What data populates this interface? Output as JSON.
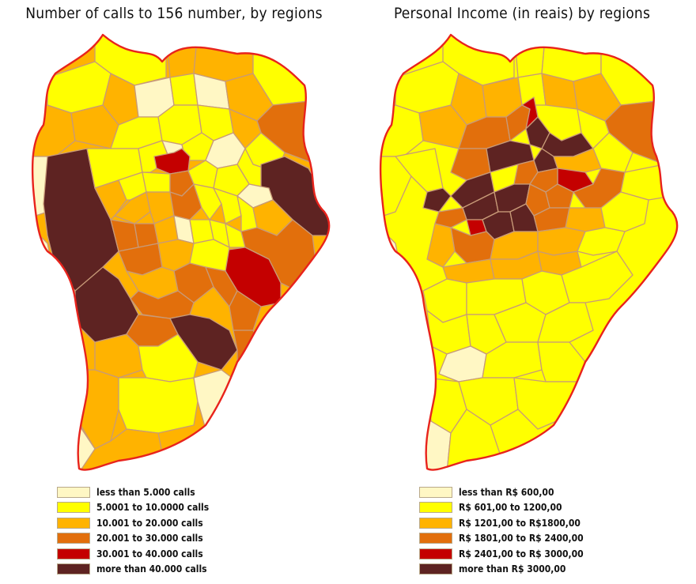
{
  "colors": {
    "c1": "#fff7c4",
    "c2": "#ffff00",
    "c3": "#ffb300",
    "c4": "#e26f0c",
    "c5": "#c40000",
    "c6": "#5e2322",
    "outline": "#e8231c",
    "inner": "#c89a78"
  },
  "maps": [
    {
      "title": "Number of calls to 156 number, by regions",
      "legend": [
        {
          "label": "less than 5.000 calls",
          "color": "#fff7c4"
        },
        {
          "label": "5.0001 to 10.0000  calls",
          "color": "#ffff00"
        },
        {
          "label": "10.001 to 20.000  calls",
          "color": "#ffb300"
        },
        {
          "label": "20.001 to 30.000  calls",
          "color": "#e26f0c"
        },
        {
          "label": "30.001 to 40.000  calls",
          "color": "#c40000"
        },
        {
          "label": "more than 40.000  calls",
          "color": "#5e2322"
        }
      ]
    },
    {
      "title": "Personal Income (in reais) by regions",
      "legend": [
        {
          "label": "less than R$ 600,00",
          "color": "#fff7c4"
        },
        {
          "label": "R$ 601,00 to 1200,00",
          "color": "#ffff00"
        },
        {
          "label": "R$ 1201,00 to R$1800,00",
          "color": "#ffb300"
        },
        {
          "label": "R$ 1801,00 to R$ 2400,00",
          "color": "#e26f0c"
        },
        {
          "label": "R$ 2401,00 to R$ 3000,00",
          "color": "#c40000"
        },
        {
          "label": "more than R$ 3000,00",
          "color": "#5e2322"
        }
      ]
    }
  ]
}
